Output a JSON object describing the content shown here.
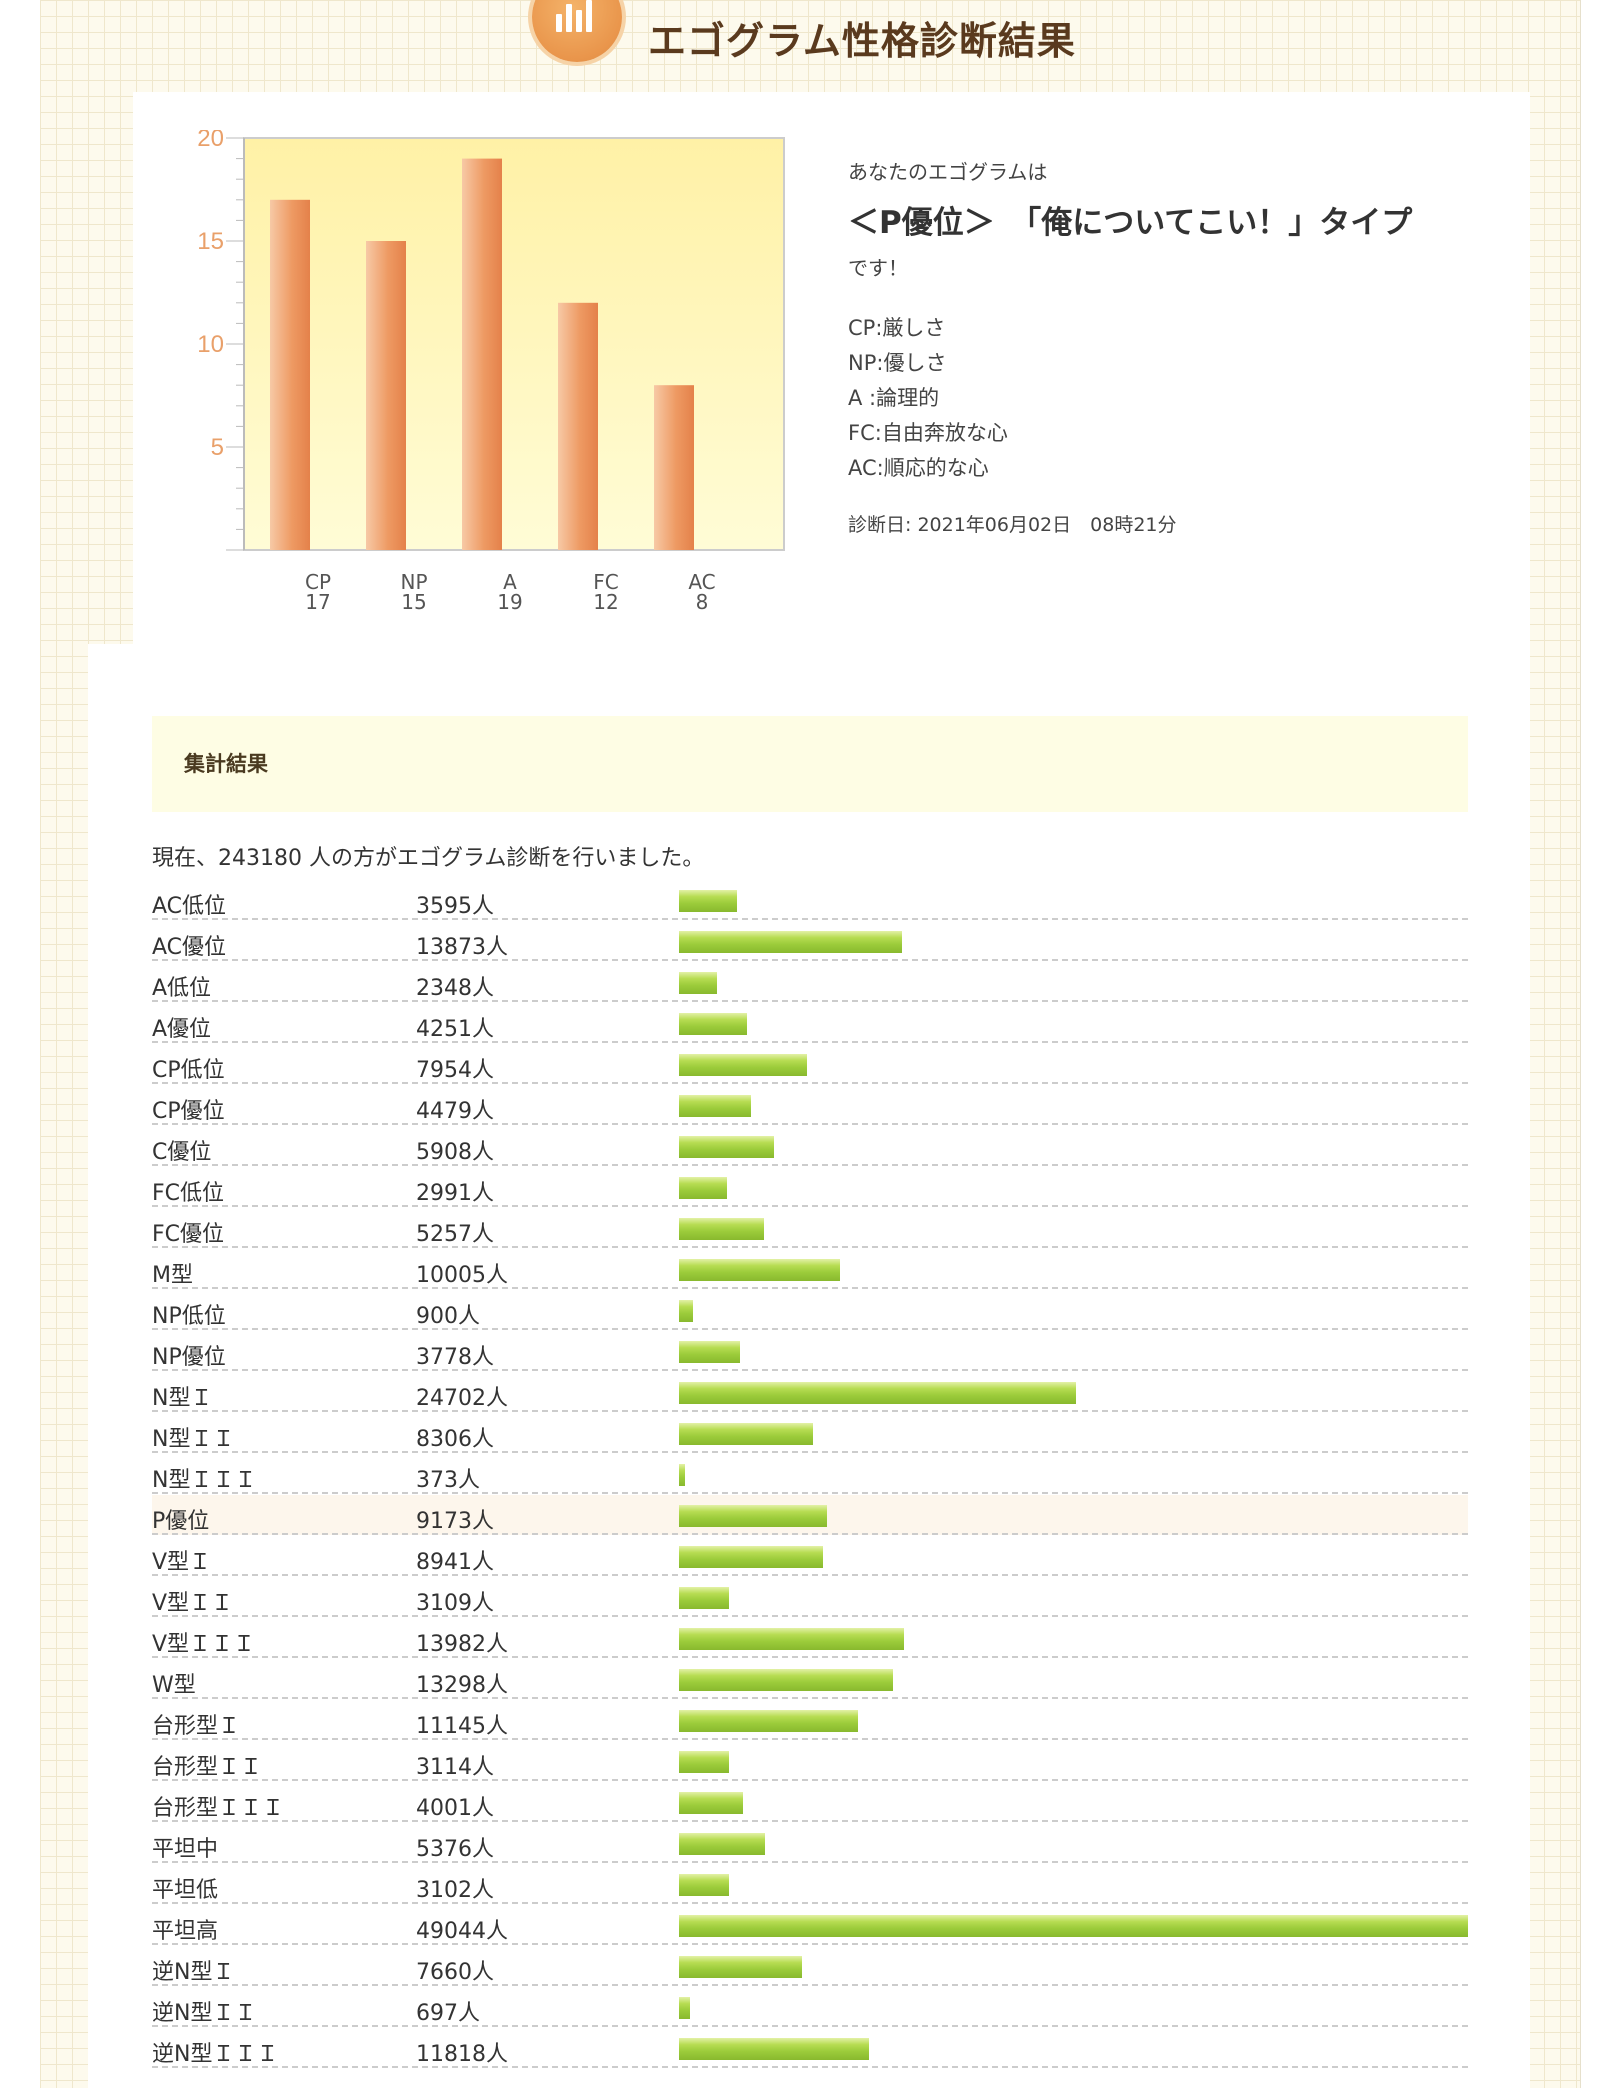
{
  "header": {
    "title": "エゴグラム性格診断結果",
    "logo_icon": "bar-chart-icon"
  },
  "result": {
    "intro": "あなたのエゴグラムは",
    "type_label": "＜P優位＞　「俺についてこい！」タイプ",
    "outro": "です！",
    "legend": [
      "CP:厳しさ",
      "NP:優しさ",
      "A :論理的",
      "FC:自由奔放な心",
      "AC:順応的な心"
    ],
    "diagnosis_date": "診断日: 2021年06月02日　08時21分"
  },
  "chart_data": {
    "type": "bar",
    "categories": [
      "CP",
      "NP",
      "A",
      "FC",
      "AC"
    ],
    "values": [
      17,
      15,
      19,
      12,
      8
    ],
    "value_labels": [
      "17",
      "15",
      "19",
      "12",
      "8"
    ],
    "ylim": [
      0,
      20
    ],
    "yticks": [
      5,
      10,
      15,
      20
    ],
    "ytick_labels": [
      "5",
      "10",
      "15",
      "20"
    ],
    "colors": {
      "plot_bg_top": "#fff1a6",
      "plot_bg_bottom": "#fffcd0",
      "bar_light": "#f7c9a6",
      "bar_dark": "#e98a52",
      "tick_label": "#e9a06a"
    }
  },
  "summary": {
    "title": "集計結果",
    "total_text": "現在、243180 人の方がエゴグラム診断を行いました。",
    "max_count": 49044,
    "highlight_name": "P優位",
    "rows": [
      {
        "name": "AC低位",
        "count_label": "3595人",
        "count": 3595
      },
      {
        "name": "AC優位",
        "count_label": "13873人",
        "count": 13873
      },
      {
        "name": "A低位",
        "count_label": "2348人",
        "count": 2348
      },
      {
        "name": "A優位",
        "count_label": "4251人",
        "count": 4251
      },
      {
        "name": "CP低位",
        "count_label": "7954人",
        "count": 7954
      },
      {
        "name": "CP優位",
        "count_label": "4479人",
        "count": 4479
      },
      {
        "name": "C優位",
        "count_label": "5908人",
        "count": 5908
      },
      {
        "name": "FC低位",
        "count_label": "2991人",
        "count": 2991
      },
      {
        "name": "FC優位",
        "count_label": "5257人",
        "count": 5257
      },
      {
        "name": "M型",
        "count_label": "10005人",
        "count": 10005
      },
      {
        "name": "NP低位",
        "count_label": "900人",
        "count": 900
      },
      {
        "name": "NP優位",
        "count_label": "3778人",
        "count": 3778
      },
      {
        "name": "N型Ｉ",
        "count_label": "24702人",
        "count": 24702
      },
      {
        "name": "N型ＩＩ",
        "count_label": "8306人",
        "count": 8306
      },
      {
        "name": "N型ＩＩＩ",
        "count_label": "373人",
        "count": 373
      },
      {
        "name": "P優位",
        "count_label": "9173人",
        "count": 9173
      },
      {
        "name": "V型Ｉ",
        "count_label": "8941人",
        "count": 8941
      },
      {
        "name": "V型ＩＩ",
        "count_label": "3109人",
        "count": 3109
      },
      {
        "name": "V型ＩＩＩ",
        "count_label": "13982人",
        "count": 13982
      },
      {
        "name": "W型",
        "count_label": "13298人",
        "count": 13298
      },
      {
        "name": "台形型Ｉ",
        "count_label": "11145人",
        "count": 11145
      },
      {
        "name": "台形型ＩＩ",
        "count_label": "3114人",
        "count": 3114
      },
      {
        "name": "台形型ＩＩＩ",
        "count_label": "4001人",
        "count": 4001
      },
      {
        "name": "平坦中",
        "count_label": "5376人",
        "count": 5376
      },
      {
        "name": "平坦低",
        "count_label": "3102人",
        "count": 3102
      },
      {
        "name": "平坦高",
        "count_label": "49044人",
        "count": 49044
      },
      {
        "name": "逆N型Ｉ",
        "count_label": "7660人",
        "count": 7660
      },
      {
        "name": "逆N型ＩＩ",
        "count_label": "697人",
        "count": 697
      },
      {
        "name": "逆N型ＩＩＩ",
        "count_label": "11818人",
        "count": 11818
      }
    ]
  }
}
